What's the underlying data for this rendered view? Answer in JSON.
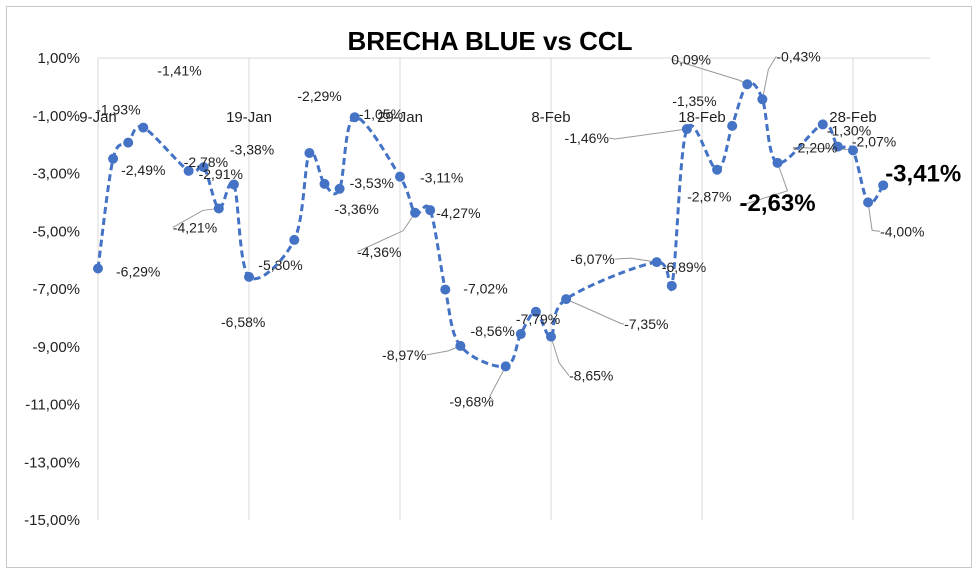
{
  "chart_data": {
    "type": "line",
    "title": "BRECHA BLUE vs CCL",
    "xlabel": "",
    "ylabel": "",
    "ylim": [
      -15,
      1
    ],
    "y_ticks": [
      "1,00%",
      "-1,00%",
      "-3,00%",
      "-5,00%",
      "-7,00%",
      "-9,00%",
      "-11,00%",
      "-13,00%",
      "-15,00%"
    ],
    "x_ticks": [
      "9-Jan",
      "19-Jan",
      "29-Jan",
      "8-Feb",
      "18-Feb",
      "28-Feb"
    ],
    "grid": "vertical",
    "series_color": "#4472c4",
    "series": [
      {
        "points": [
          {
            "date": "2021-01-09",
            "value": -6.29,
            "label": "-6,29%"
          },
          {
            "date": "2021-01-10",
            "value": -2.49,
            "label": "-2,49%"
          },
          {
            "date": "2021-01-11",
            "value": -1.93,
            "label": "-1,93%"
          },
          {
            "date": "2021-01-12",
            "value": -1.41,
            "label": "-1,41%"
          },
          {
            "date": "2021-01-15",
            "value": -2.91,
            "label": "-2,91%"
          },
          {
            "date": "2021-01-16",
            "value": -2.78,
            "label": "-2,78%"
          },
          {
            "date": "2021-01-17",
            "value": -4.21,
            "label": "-4,21%"
          },
          {
            "date": "2021-01-18",
            "value": -3.38,
            "label": "-3,38%"
          },
          {
            "date": "2021-01-19",
            "value": -6.58,
            "label": "-6,58%"
          },
          {
            "date": "2021-01-22",
            "value": -5.3,
            "label": "-5,30%"
          },
          {
            "date": "2021-01-23",
            "value": -2.29,
            "label": "-2,29%"
          },
          {
            "date": "2021-01-24",
            "value": -3.36,
            "label": "-3,36%"
          },
          {
            "date": "2021-01-25",
            "value": -3.53,
            "label": "-3,53%"
          },
          {
            "date": "2021-01-26",
            "value": -1.05,
            "label": "-1,05%"
          },
          {
            "date": "2021-01-29",
            "value": -3.11,
            "label": "-3,11%"
          },
          {
            "date": "2021-01-30",
            "value": -4.36,
            "label": "-4,36%"
          },
          {
            "date": "2021-01-31",
            "value": -4.27,
            "label": "-4,27%"
          },
          {
            "date": "2021-02-01",
            "value": -7.02,
            "label": "-7,02%"
          },
          {
            "date": "2021-02-02",
            "value": -8.97,
            "label": "-8,97%"
          },
          {
            "date": "2021-02-05",
            "value": -9.68,
            "label": "-9,68%"
          },
          {
            "date": "2021-02-06",
            "value": -8.56,
            "label": "-8,56%"
          },
          {
            "date": "2021-02-07",
            "value": -7.79,
            "label": "-7,79%"
          },
          {
            "date": "2021-02-08",
            "value": -8.65,
            "label": "-8,65%"
          },
          {
            "date": "2021-02-09",
            "value": -7.35,
            "label": "-7,35%"
          },
          {
            "date": "2021-02-15",
            "value": -6.07,
            "label": "-6,07%"
          },
          {
            "date": "2021-02-16",
            "value": -6.89,
            "label": "-6,89%"
          },
          {
            "date": "2021-02-17",
            "value": -1.46,
            "label": "-1,46%"
          },
          {
            "date": "2021-02-19",
            "value": -2.87,
            "label": "-2,87%"
          },
          {
            "date": "2021-02-20",
            "value": -1.35,
            "label": "-1,35%"
          },
          {
            "date": "2021-02-21",
            "value": 0.09,
            "label": "0,09%"
          },
          {
            "date": "2021-02-22",
            "value": -0.43,
            "label": "-0,43%"
          },
          {
            "date": "2021-02-23",
            "value": -2.63,
            "label": "-2,63%"
          },
          {
            "date": "2021-02-26",
            "value": -1.3,
            "label": "-1,30%"
          },
          {
            "date": "2021-02-27",
            "value": -2.07,
            "label": "-2,07%"
          },
          {
            "date": "2021-02-28",
            "value": -2.2,
            "label": "-2,20%"
          },
          {
            "date": "2021-03-01",
            "value": -4.0,
            "label": "-4,00%"
          },
          {
            "date": "2021-03-02",
            "value": -3.41,
            "label": "-3,41%"
          }
        ]
      }
    ]
  }
}
